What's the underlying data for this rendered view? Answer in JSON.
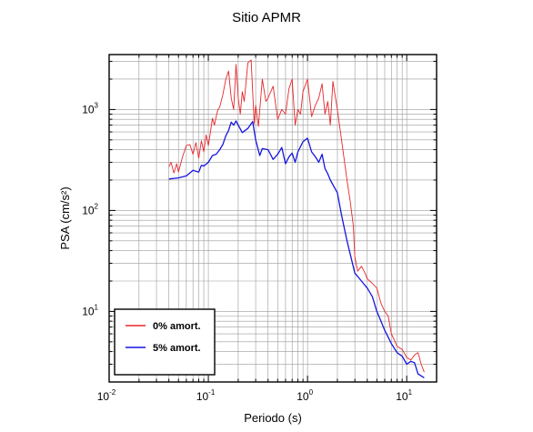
{
  "chart_data": {
    "type": "line",
    "title": "Sitio APMR",
    "xlabel": "Periodo (s)",
    "ylabel": "PSA (cm/s²)",
    "x_scale": "log",
    "y_scale": "log",
    "xlim": [
      0.01,
      20
    ],
    "ylim": [
      2,
      3500
    ],
    "grid": true,
    "legend_position": "bottom-left",
    "x_ticks": [
      {
        "base": "10",
        "exp": "-2"
      },
      {
        "base": "10",
        "exp": "-1"
      },
      {
        "base": "10",
        "exp": "0"
      },
      {
        "base": "10",
        "exp": "1"
      }
    ],
    "y_ticks": [
      {
        "base": "10",
        "exp": "1"
      },
      {
        "base": "10",
        "exp": "2"
      },
      {
        "base": "10",
        "exp": "3"
      }
    ],
    "series": [
      {
        "name": "0% amort.",
        "color": "#e8262a",
        "width": 0.9,
        "x": [
          0.04,
          0.042,
          0.045,
          0.048,
          0.05,
          0.055,
          0.06,
          0.065,
          0.07,
          0.075,
          0.08,
          0.085,
          0.09,
          0.095,
          0.1,
          0.105,
          0.11,
          0.115,
          0.12,
          0.125,
          0.13,
          0.14,
          0.15,
          0.16,
          0.17,
          0.18,
          0.19,
          0.2,
          0.21,
          0.22,
          0.23,
          0.25,
          0.27,
          0.29,
          0.3,
          0.32,
          0.35,
          0.38,
          0.4,
          0.45,
          0.5,
          0.55,
          0.6,
          0.65,
          0.7,
          0.75,
          0.8,
          0.85,
          0.9,
          1.0,
          1.1,
          1.2,
          1.3,
          1.4,
          1.5,
          1.6,
          1.7,
          1.8,
          2.0,
          2.2,
          2.5,
          2.7,
          2.9,
          3.0,
          3.2,
          3.5,
          3.8,
          4.0,
          4.5,
          5.0,
          5.5,
          6.0,
          6.5,
          7.0,
          7.5,
          8.0,
          9.0,
          10.0,
          11.0,
          12.0,
          13.0,
          14.0,
          15.0
        ],
        "y": [
          270,
          300,
          235,
          290,
          240,
          340,
          440,
          450,
          360,
          470,
          330,
          490,
          380,
          560,
          440,
          600,
          820,
          700,
          850,
          1000,
          1050,
          1400,
          2000,
          2400,
          1300,
          1000,
          2800,
          1300,
          900,
          1500,
          1200,
          2900,
          3100,
          720,
          1100,
          680,
          2000,
          1200,
          1300,
          1700,
          800,
          1000,
          900,
          1600,
          2000,
          700,
          1000,
          900,
          1500,
          2000,
          850,
          1100,
          1300,
          1800,
          900,
          1200,
          700,
          1900,
          1000,
          500,
          200,
          120,
          70,
          35,
          25,
          28,
          24,
          21,
          19,
          17,
          12,
          10,
          9,
          6,
          5.2,
          4.5,
          4.2,
          3.5,
          3.3,
          3.7,
          3.9,
          3.0,
          2.5
        ]
      },
      {
        "name": "5% amort.",
        "color": "#1616e0",
        "width": 1.3,
        "x": [
          0.04,
          0.05,
          0.06,
          0.07,
          0.08,
          0.085,
          0.09,
          0.1,
          0.11,
          0.12,
          0.13,
          0.14,
          0.15,
          0.16,
          0.17,
          0.18,
          0.19,
          0.2,
          0.22,
          0.25,
          0.28,
          0.3,
          0.33,
          0.35,
          0.4,
          0.45,
          0.5,
          0.55,
          0.6,
          0.65,
          0.7,
          0.75,
          0.8,
          0.9,
          1.0,
          1.1,
          1.2,
          1.3,
          1.4,
          1.5,
          1.6,
          1.7,
          2.0,
          2.2,
          2.5,
          3.0,
          3.5,
          4.0,
          4.5,
          5.0,
          5.5,
          6.0,
          7.0,
          8.0,
          9.0,
          10.0,
          11.0,
          12.0,
          13.0,
          14.0,
          15.0
        ],
        "y": [
          205,
          210,
          220,
          250,
          240,
          280,
          275,
          300,
          350,
          360,
          400,
          450,
          550,
          620,
          750,
          700,
          770,
          700,
          590,
          650,
          760,
          500,
          350,
          410,
          400,
          320,
          360,
          420,
          290,
          340,
          370,
          300,
          380,
          480,
          520,
          380,
          340,
          300,
          360,
          260,
          230,
          200,
          150,
          90,
          50,
          24,
          20,
          17,
          14,
          10,
          8,
          6.5,
          4.8,
          3.9,
          3.6,
          3.0,
          3.2,
          3.1,
          2.4,
          2.3,
          2.2
        ]
      }
    ]
  }
}
